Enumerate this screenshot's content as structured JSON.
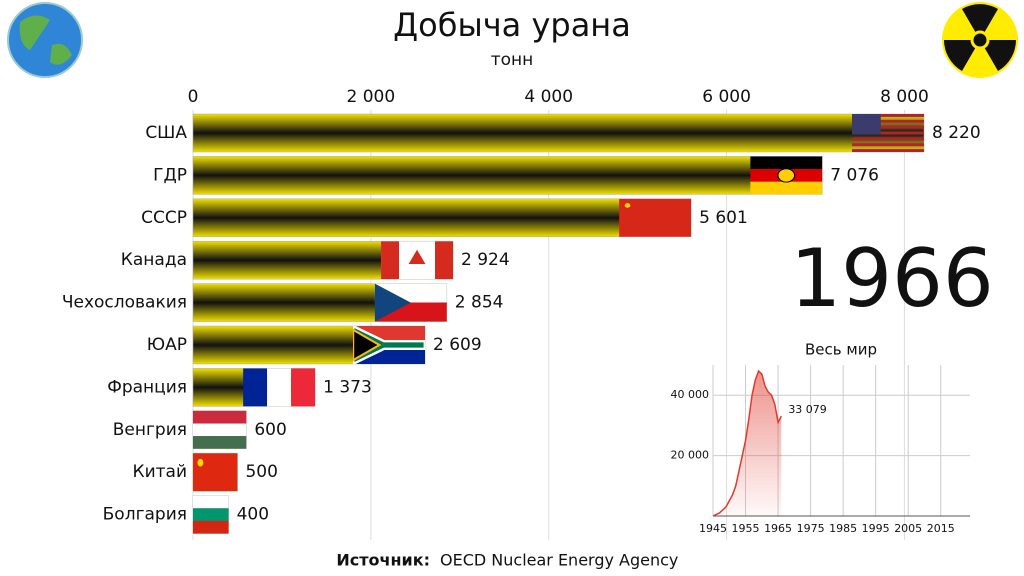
{
  "chart_data": [
    {
      "type": "bar",
      "orientation": "horizontal",
      "title": "Добыча урана",
      "subtitle": "тонн",
      "categories": [
        "США",
        "ГДР",
        "СССР",
        "Канада",
        "Чехословакия",
        "ЮАР",
        "Франция",
        "Венгрия",
        "Китай",
        "Болгария"
      ],
      "values": [
        8220,
        7076,
        5601,
        2924,
        2854,
        2609,
        1373,
        600,
        500,
        400
      ],
      "value_labels": [
        "8 220",
        "7 076",
        "5 601",
        "2 924",
        "2 854",
        "2 609",
        "1 373",
        "600",
        "500",
        "400"
      ],
      "xlim": [
        0,
        8220
      ],
      "xticks": [
        0,
        {
          "value": 2000,
          "label": "2 000"
        },
        {
          "value": 4000,
          "label": "4 000"
        },
        {
          "value": 6000,
          "label": "6 000"
        },
        {
          "value": 8000,
          "label": "8 000"
        }
      ],
      "annotation": "1966",
      "source": {
        "label": "Источник:",
        "text": "OECD Nuclear Energy Agency"
      }
    },
    {
      "type": "line",
      "title": "Весь мир",
      "color": "#e03a2e",
      "fill": true,
      "grid": true,
      "x": [
        1945,
        1946,
        1947,
        1948,
        1949,
        1950,
        1951,
        1952,
        1953,
        1954,
        1955,
        1956,
        1957,
        1958,
        1959,
        1960,
        1961,
        1962,
        1963,
        1964,
        1965,
        1966
      ],
      "values": [
        0,
        500,
        1000,
        2000,
        3000,
        5000,
        7000,
        10000,
        15000,
        20000,
        25000,
        32000,
        40000,
        45000,
        48000,
        47000,
        43000,
        41000,
        40000,
        37000,
        31000,
        33079
      ],
      "end_label": "33 079",
      "xlim": [
        1945,
        2024
      ],
      "ylim": [
        0,
        50000
      ],
      "xticks": [
        1945,
        1955,
        1965,
        1975,
        1985,
        1995,
        2005,
        2015
      ],
      "yticks": [
        {
          "value": 20000,
          "label": "20 000"
        },
        {
          "value": 40000,
          "label": "40 000"
        }
      ]
    }
  ]
}
